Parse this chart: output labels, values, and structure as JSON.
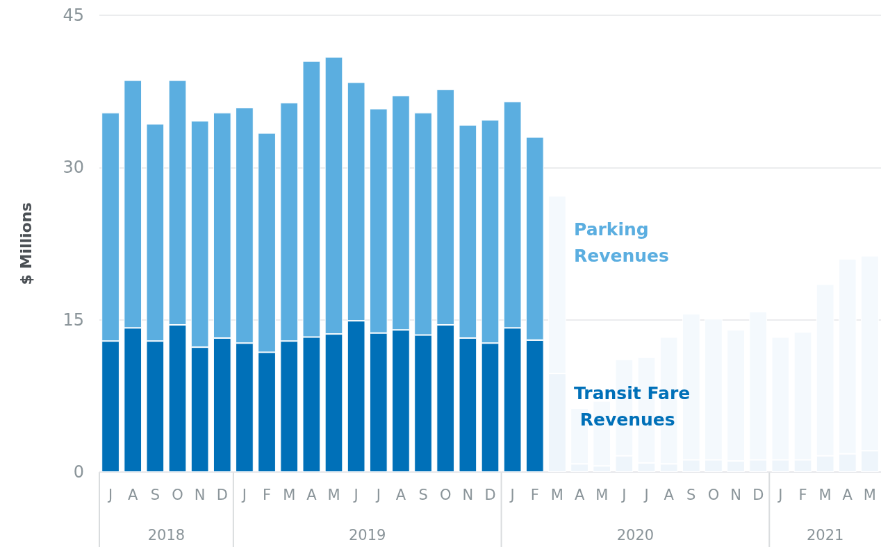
{
  "chart_data": {
    "type": "bar",
    "stacked": true,
    "ylabel": "$ Millions",
    "categories": [
      "J",
      "A",
      "S",
      "O",
      "N",
      "D",
      "J",
      "F",
      "M",
      "A",
      "M",
      "J",
      "J",
      "A",
      "S",
      "O",
      "N",
      "D",
      "J",
      "F",
      "M",
      "A",
      "M",
      "J",
      "J",
      "A",
      "S",
      "O",
      "N",
      "D",
      "J",
      "F",
      "M",
      "A",
      "M"
    ],
    "series": [
      {
        "name": "Transit Fare Revenues",
        "color": "#0070b8",
        "colors": [
          "#0070b8",
          "#0070b8",
          "#0070b8",
          "#0070b8",
          "#0070b8",
          "#0070b8",
          "#0070b8",
          "#0070b8",
          "#0070b8",
          "#0070b8",
          "#0070b8",
          "#0070b8",
          "#0070b8",
          "#0070b8",
          "#0070b8",
          "#0070b8",
          "#0070b8",
          "#0070b8",
          "#0070b8",
          "#0070b8",
          "#eef5fb",
          "#eef5fb",
          "#eef5fb",
          "#eef5fb",
          "#eef5fb",
          "#eef5fb",
          "#eef5fb",
          "#eef5fb",
          "#eef5fb",
          "#eef5fb",
          "#eef5fb",
          "#eef5fb",
          "#eef5fb",
          "#eef5fb",
          "#eef5fb"
        ],
        "values": [
          12.9,
          14.2,
          12.9,
          14.5,
          12.3,
          13.2,
          12.7,
          11.8,
          12.9,
          13.3,
          13.6,
          14.9,
          13.7,
          14.0,
          13.5,
          14.5,
          13.2,
          12.7,
          14.2,
          13.0,
          9.7,
          0.8,
          0.6,
          1.6,
          0.9,
          0.8,
          1.2,
          1.2,
          1.1,
          1.2,
          1.2,
          1.2,
          1.6,
          1.8,
          2.1
        ]
      },
      {
        "name": "Parking Revenues",
        "color": "#5baee0",
        "colors": [
          "#5baee0",
          "#5baee0",
          "#5baee0",
          "#5baee0",
          "#5baee0",
          "#5baee0",
          "#5baee0",
          "#5baee0",
          "#5baee0",
          "#5baee0",
          "#5baee0",
          "#5baee0",
          "#5baee0",
          "#5baee0",
          "#5baee0",
          "#5baee0",
          "#5baee0",
          "#5baee0",
          "#5baee0",
          "#5baee0",
          "#f4f9fd",
          "#f4f9fd",
          "#f4f9fd",
          "#f4f9fd",
          "#f4f9fd",
          "#f4f9fd",
          "#f4f9fd",
          "#f4f9fd",
          "#f4f9fd",
          "#f4f9fd",
          "#f4f9fd",
          "#f4f9fd",
          "#f4f9fd",
          "#f4f9fd",
          "#f4f9fd"
        ],
        "values": [
          22.5,
          24.4,
          21.4,
          24.1,
          22.3,
          22.2,
          23.2,
          21.6,
          23.5,
          27.2,
          27.3,
          23.5,
          22.1,
          23.1,
          21.9,
          23.2,
          21.0,
          22.0,
          22.3,
          20.0,
          17.5,
          5.5,
          6.4,
          9.5,
          10.4,
          12.5,
          14.4,
          13.9,
          12.9,
          14.6,
          12.1,
          12.6,
          16.9,
          19.2,
          19.2
        ]
      }
    ],
    "ylim": [
      0,
      45
    ],
    "yticks": [
      0,
      15,
      30,
      45
    ],
    "grid": "y",
    "legend": false,
    "annotations": [
      "2018",
      "2019",
      "2020",
      "2021"
    ]
  }
}
